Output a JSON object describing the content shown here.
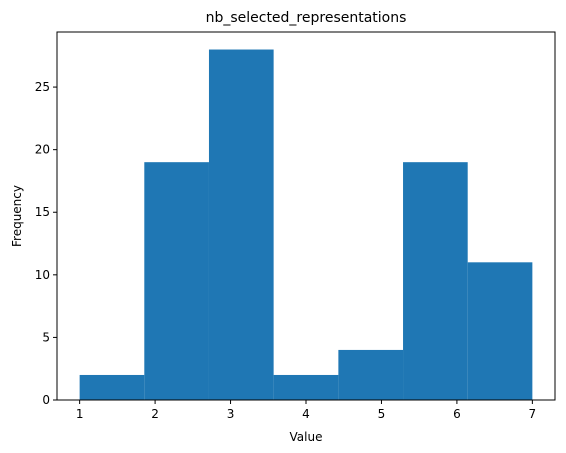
{
  "chart_data": {
    "type": "bar",
    "title": "nb_selected_representations",
    "xlabel": "Value",
    "ylabel": "Frequency",
    "bins": [
      {
        "x0": 1.0,
        "x1": 1.857,
        "value": 2
      },
      {
        "x0": 1.857,
        "x1": 2.714,
        "value": 19
      },
      {
        "x0": 2.714,
        "x1": 3.571,
        "value": 28
      },
      {
        "x0": 3.571,
        "x1": 4.429,
        "value": 2
      },
      {
        "x0": 4.429,
        "x1": 5.286,
        "value": 4
      },
      {
        "x0": 5.286,
        "x1": 6.143,
        "value": 19
      },
      {
        "x0": 6.143,
        "x1": 7.0,
        "value": 11
      }
    ],
    "xlim": [
      0.7,
      7.3
    ],
    "ylim": [
      0,
      29.4
    ],
    "xticks": [
      1,
      2,
      3,
      4,
      5,
      6,
      7
    ],
    "yticks": [
      0,
      5,
      10,
      15,
      20,
      25
    ],
    "bar_color": "#1f77b4",
    "grid": false,
    "legend": "none"
  }
}
